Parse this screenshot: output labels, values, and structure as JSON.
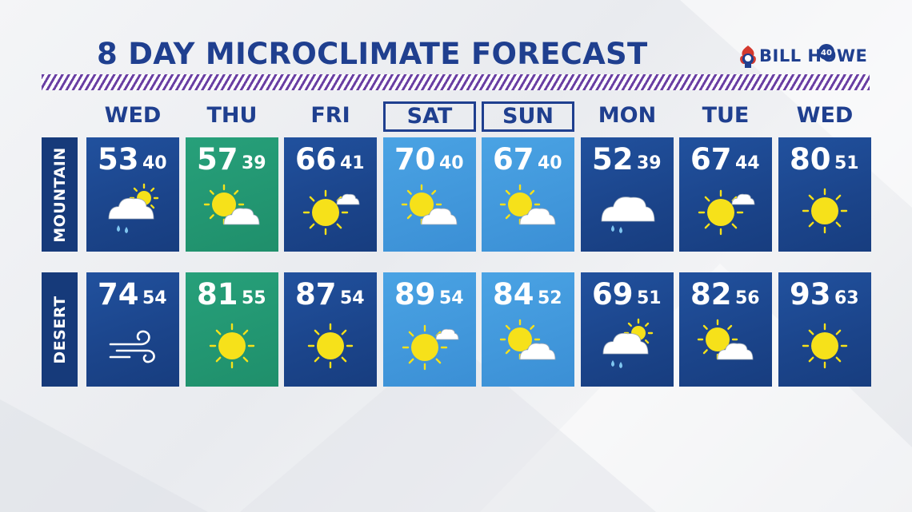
{
  "title": "8 DAY MICROCLIMATE FORECAST",
  "logo_text": "BILL HOWE",
  "logo_badge": "40",
  "days": [
    "WED",
    "THU",
    "FRI",
    "SAT",
    "SUN",
    "MON",
    "TUE",
    "WED"
  ],
  "rows": [
    {
      "label": "MOUNTAIN",
      "cells": [
        {
          "hi": "53",
          "lo": "40",
          "icon": "rain-cloud-sun-icon",
          "bg": "blue"
        },
        {
          "hi": "57",
          "lo": "39",
          "icon": "partly-cloudy-icon",
          "bg": "green"
        },
        {
          "hi": "66",
          "lo": "41",
          "icon": "sun-small-cloud-icon",
          "bg": "blue"
        },
        {
          "hi": "70",
          "lo": "40",
          "icon": "partly-cloudy-icon",
          "bg": "light"
        },
        {
          "hi": "67",
          "lo": "40",
          "icon": "partly-cloudy-icon",
          "bg": "light"
        },
        {
          "hi": "52",
          "lo": "39",
          "icon": "rain-cloud-icon",
          "bg": "blue"
        },
        {
          "hi": "67",
          "lo": "44",
          "icon": "sun-small-cloud-icon",
          "bg": "blue"
        },
        {
          "hi": "80",
          "lo": "51",
          "icon": "sun-icon",
          "bg": "blue"
        }
      ]
    },
    {
      "label": "DESERT",
      "cells": [
        {
          "hi": "74",
          "lo": "54",
          "icon": "wind-icon",
          "bg": "blue"
        },
        {
          "hi": "81",
          "lo": "55",
          "icon": "sun-icon",
          "bg": "green"
        },
        {
          "hi": "87",
          "lo": "54",
          "icon": "sun-icon",
          "bg": "blue"
        },
        {
          "hi": "89",
          "lo": "54",
          "icon": "sun-small-cloud-icon",
          "bg": "light"
        },
        {
          "hi": "84",
          "lo": "52",
          "icon": "partly-cloudy-icon",
          "bg": "light"
        },
        {
          "hi": "69",
          "lo": "51",
          "icon": "rain-cloud-sun-icon",
          "bg": "blue"
        },
        {
          "hi": "82",
          "lo": "56",
          "icon": "partly-cloudy-icon",
          "bg": "blue"
        },
        {
          "hi": "93",
          "lo": "63",
          "icon": "sun-icon",
          "bg": "blue"
        }
      ]
    }
  ],
  "colors": {
    "title": "#1f3f8f",
    "cell_blue": "#1b448a",
    "cell_green": "#1f8f6b",
    "cell_light": "#3b8fd5",
    "stripe": "#6a3fa3",
    "sun": "#f6e11a"
  }
}
